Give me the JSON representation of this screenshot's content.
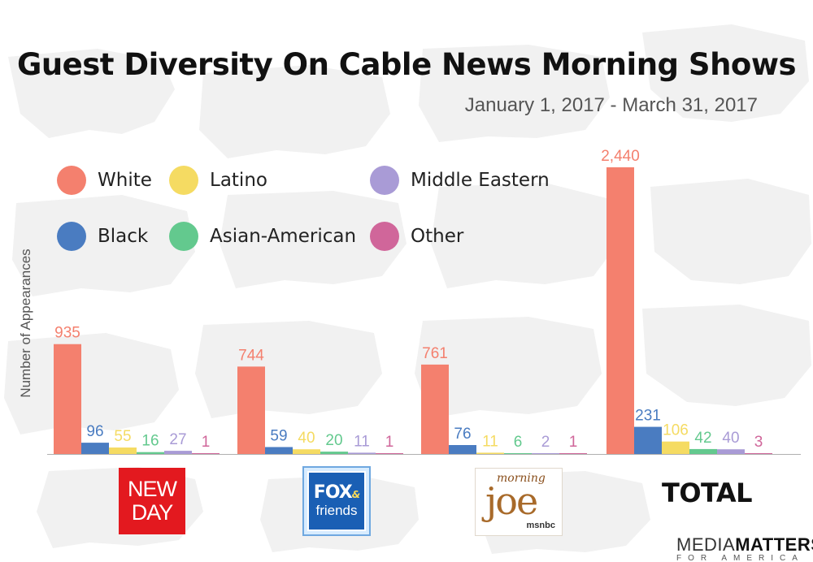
{
  "chart_data": {
    "type": "bar",
    "title": "Guest Diversity On Cable News Morning Shows",
    "subtitle": "January 1, 2017 - March 31, 2017",
    "ylabel": "Number of Appearances",
    "xlabel": "",
    "ylim": [
      0,
      2440
    ],
    "grid": false,
    "legend_position": "top-left",
    "categories": [
      "New Day",
      "Fox & Friends",
      "Morning Joe",
      "TOTAL"
    ],
    "series": [
      {
        "name": "White",
        "color": "#f4806e",
        "values": [
          935,
          744,
          761,
          2440
        ],
        "labels": [
          "935",
          "744",
          "761",
          "2,440"
        ]
      },
      {
        "name": "Black",
        "color": "#4a7cc1",
        "values": [
          96,
          59,
          76,
          231
        ],
        "labels": [
          "96",
          "59",
          "76",
          "231"
        ]
      },
      {
        "name": "Latino",
        "color": "#f5db62",
        "values": [
          55,
          40,
          11,
          106
        ],
        "labels": [
          "55",
          "40",
          "11",
          "106"
        ]
      },
      {
        "name": "Asian-American",
        "color": "#63c98e",
        "values": [
          16,
          20,
          6,
          42
        ],
        "labels": [
          "16",
          "20",
          "6",
          "42"
        ]
      },
      {
        "name": "Middle Eastern",
        "color": "#a99bd6",
        "values": [
          27,
          11,
          2,
          40
        ],
        "labels": [
          "27",
          "11",
          "2",
          "40"
        ]
      },
      {
        "name": "Other",
        "color": "#d0669a",
        "values": [
          1,
          1,
          1,
          3
        ],
        "labels": [
          "1",
          "1",
          "1",
          "3"
        ]
      }
    ]
  },
  "legend": [
    {
      "label": "White",
      "color": "#f4806e"
    },
    {
      "label": "Latino",
      "color": "#f5db62"
    },
    {
      "label": "Middle Eastern",
      "color": "#a99bd6"
    },
    {
      "label": "Black",
      "color": "#4a7cc1"
    },
    {
      "label": "Asian-American",
      "color": "#63c98e"
    },
    {
      "label": "Other",
      "color": "#d0669a"
    }
  ],
  "logos": {
    "newday": {
      "line1": "NEW",
      "line2": "DAY",
      "color": "#e3191f"
    },
    "fox": {
      "word": "FOX",
      "amp": "&",
      "friends": "friends",
      "color": "#1a5fb4"
    },
    "joe": {
      "morning": "morning",
      "joe": "joe",
      "network": "msnbc"
    },
    "total": "TOTAL"
  },
  "brand": {
    "bold": "MATTERS",
    "prefix": "MEDIA",
    "sub": "FOR AMERICA"
  },
  "colors": {
    "axis": "#b0b0b0",
    "map": "#f0f0f0"
  }
}
